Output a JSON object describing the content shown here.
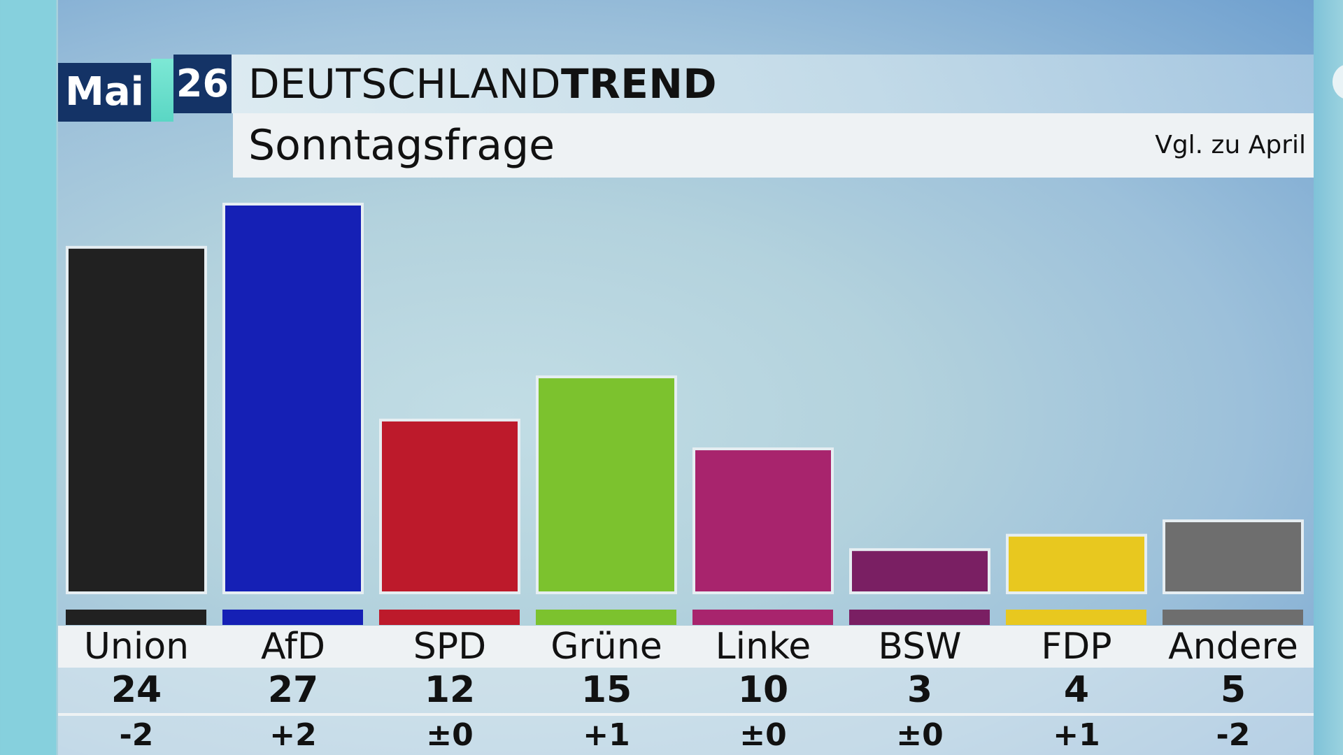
{
  "header": {
    "month": "Mai",
    "year": "26",
    "title_light": "DEUTSCHLAND",
    "title_bold": "TREND",
    "subtitle": "Sonntagsfrage",
    "comparison_note": "Vgl. zu April"
  },
  "chart_data": {
    "type": "bar",
    "title": "DEUTSCHLANDTREND",
    "subtitle": "Sonntagsfrage",
    "categories": [
      "Union",
      "AfD",
      "SPD",
      "Grüne",
      "Linke",
      "BSW",
      "FDP",
      "Andere"
    ],
    "values": [
      24,
      27,
      12,
      15,
      10,
      3,
      4,
      5
    ],
    "value_labels": [
      "24",
      "27",
      "12",
      "15",
      "10",
      "3",
      "4",
      "5"
    ],
    "change_labels": [
      "-2",
      "+2",
      "±0",
      "+1",
      "±0",
      "±0",
      "+1",
      "-2"
    ],
    "comparison": "Vgl. zu April",
    "colors": [
      "#212121",
      "#1520b5",
      "#bd1a2b",
      "#7cc22e",
      "#a8246d",
      "#7a1f63",
      "#e8c81f",
      "#6e6e6e"
    ],
    "ylim": [
      0,
      27
    ],
    "grid": false,
    "legend": "none"
  }
}
